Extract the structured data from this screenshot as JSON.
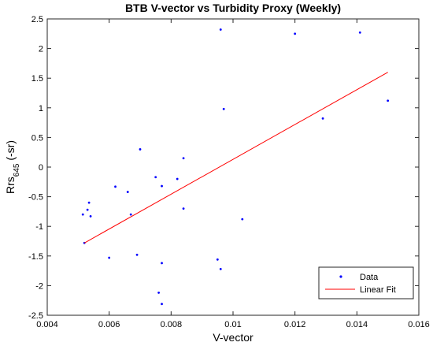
{
  "chart_data": {
    "type": "scatter",
    "title": "BTB V-vector vs Turbidity Proxy (Weekly)",
    "xlabel": "V-vector",
    "ylabel_main": "Rrs",
    "ylabel_sub": "645",
    "ylabel_unit": " (-sr)",
    "xlim": [
      0.004,
      0.016
    ],
    "ylim": [
      -2.5,
      2.5
    ],
    "xticks": [
      0.004,
      0.006,
      0.008,
      0.01,
      0.012,
      0.014,
      0.016
    ],
    "xtick_labels": [
      "0.004",
      "0.006",
      "0.008",
      "0.01",
      "0.012",
      "0.014",
      "0.016"
    ],
    "yticks": [
      -2.5,
      -2,
      -1.5,
      -1,
      -0.5,
      0,
      0.5,
      1,
      1.5,
      2,
      2.5
    ],
    "ytick_labels": [
      "-2.5",
      "-2",
      "-1.5",
      "-1",
      "-0.5",
      "0",
      "0.5",
      "1",
      "1.5",
      "2",
      "2.5"
    ],
    "grid": false,
    "legend_position": "bottom-right",
    "series": [
      {
        "name": "Data",
        "kind": "points",
        "color": "#0000ff",
        "x": [
          0.00515,
          0.0052,
          0.0053,
          0.00535,
          0.0054,
          0.006,
          0.0062,
          0.0066,
          0.0067,
          0.0069,
          0.007,
          0.0075,
          0.0076,
          0.0077,
          0.0077,
          0.0077,
          0.0082,
          0.0084,
          0.0084,
          0.0095,
          0.0096,
          0.0096,
          0.0097,
          0.0103,
          0.012,
          0.0129,
          0.0141,
          0.015
        ],
        "y": [
          -0.8,
          -1.28,
          -0.72,
          -0.6,
          -0.83,
          -1.53,
          -0.33,
          -0.42,
          -0.8,
          -1.48,
          0.3,
          -0.17,
          -2.12,
          -2.31,
          -1.62,
          -0.32,
          -0.2,
          -0.7,
          0.15,
          -1.56,
          2.32,
          -1.72,
          0.98,
          -0.88,
          2.25,
          0.82,
          2.27,
          1.12
        ]
      },
      {
        "name": "Linear Fit",
        "kind": "line",
        "color": "#ff0000",
        "x": [
          0.0052,
          0.015
        ],
        "y": [
          -1.28,
          1.6
        ]
      }
    ]
  }
}
